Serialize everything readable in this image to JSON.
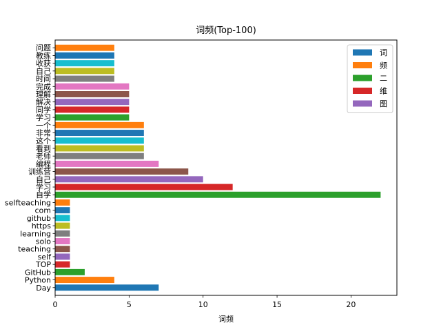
{
  "chart_data": {
    "type": "bar",
    "orientation": "horizontal",
    "title": "词频(Top-100)",
    "xlabel": "词频",
    "ylabel": "",
    "xlim": [
      0,
      23.1
    ],
    "xticks": [
      0,
      5,
      10,
      15,
      20
    ],
    "grid": false,
    "legend": {
      "placement": "top-right",
      "entries": [
        {
          "label": "词",
          "color": "#1f77b4"
        },
        {
          "label": "频",
          "color": "#ff7f0e"
        },
        {
          "label": "二",
          "color": "#2ca02c"
        },
        {
          "label": "维",
          "color": "#d62728"
        },
        {
          "label": "图",
          "color": "#9467bd"
        }
      ]
    },
    "categories": [
      "Day",
      "Python",
      "GitHub",
      "TOP",
      "self",
      "teaching",
      "solo",
      "learning",
      "https",
      "github",
      "com",
      "selfteaching",
      "自学",
      "学习",
      "自己",
      "训练营",
      "编程",
      "老师",
      "看到",
      "这个",
      "非常",
      "一个",
      "学习",
      "同学",
      "解决",
      "理解",
      "完成",
      "时间",
      "自己",
      "收获",
      "教练",
      "问题"
    ],
    "values": [
      7,
      4,
      2,
      1,
      1,
      1,
      1,
      1,
      1,
      1,
      1,
      1,
      22,
      12,
      10,
      9,
      7,
      6,
      6,
      6,
      6,
      6,
      5,
      5,
      5,
      5,
      5,
      4,
      4,
      4,
      4,
      4
    ],
    "colors": [
      "#1f77b4",
      "#ff7f0e",
      "#2ca02c",
      "#d62728",
      "#9467bd",
      "#8c564b",
      "#e377c2",
      "#7f7f7f",
      "#bcbd22",
      "#17becf",
      "#1f77b4",
      "#ff7f0e",
      "#2ca02c",
      "#d62728",
      "#9467bd",
      "#8c564b",
      "#e377c2",
      "#7f7f7f",
      "#bcbd22",
      "#17becf",
      "#1f77b4",
      "#ff7f0e",
      "#2ca02c",
      "#d62728",
      "#9467bd",
      "#8c564b",
      "#e377c2",
      "#7f7f7f",
      "#bcbd22",
      "#17becf",
      "#1f77b4",
      "#ff7f0e"
    ]
  }
}
